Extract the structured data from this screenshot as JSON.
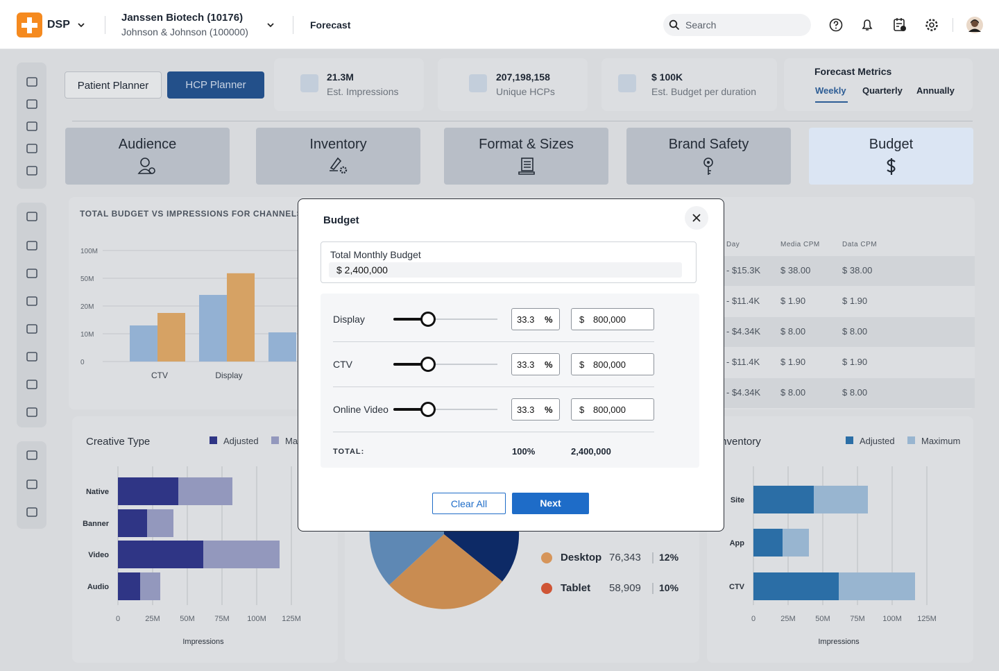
{
  "header": {
    "brand": "DSP",
    "account": "Janssen Biotech (10176)",
    "parent": "Johnson & Johnson (100000)",
    "page": "Forecast",
    "search_placeholder": "Search"
  },
  "planner_tabs": [
    "Patient Planner",
    "HCP Planner"
  ],
  "metrics": [
    {
      "value": "21.3M",
      "label": "Est. Impressions"
    },
    {
      "value": "207,198,158",
      "label": "Unique HCPs"
    },
    {
      "value": "$ 100K",
      "label": "Est. Budget per duration"
    }
  ],
  "forecast_metrics": {
    "title": "Forecast Metrics",
    "options": [
      "Weekly",
      "Quarterly",
      "Annually"
    ]
  },
  "steps": [
    "Audience",
    "Inventory",
    "Format & Sizes",
    "Brand Safety",
    "Budget"
  ],
  "budget_chart": {
    "type": "bar",
    "title": "TOTAL BUDGET VS IMPRESSIONS FOR CHANNELS",
    "categories": [
      "CTV",
      "Display",
      null
    ],
    "series": [
      {
        "color": "#93b1d3",
        "values": [
          13000000,
          32000000,
          10500000
        ]
      },
      {
        "color": "#d6a264",
        "values": [
          17500000,
          59000000,
          null
        ]
      }
    ],
    "ylim": [
      0,
      100000000
    ],
    "yticks": [
      0,
      {
        "value": 10000000,
        "label": "10M"
      },
      {
        "value": 20000000,
        "label": "20M"
      },
      {
        "value": 50000000,
        "label": "50M"
      },
      {
        "value": 100000000,
        "label": "100M"
      }
    ],
    "grid": true
  },
  "cost_table": {
    "headers": [
      "Day",
      "Media CPM",
      "Data CPM"
    ],
    "rows": [
      [
        "- $15.3K",
        "$ 38.00",
        "$ 38.00"
      ],
      [
        "- $11.4K",
        "$ 1.90",
        "$ 1.90"
      ],
      [
        "- $4.34K",
        "$ 8.00",
        "$ 8.00"
      ],
      [
        "- $11.4K",
        "$ 1.90",
        "$ 1.90"
      ],
      [
        "- $4.34K",
        "$ 8.00",
        "$ 8.00"
      ]
    ]
  },
  "creative_chart": {
    "type": "bar",
    "title": "Creative Type",
    "categories": [
      "Native",
      "Banner",
      "Video",
      "Audio"
    ],
    "series": [
      {
        "name": "Adjusted",
        "color": "#2f3585",
        "values": [
          43500000,
          21000000,
          61500000,
          16000000
        ]
      },
      {
        "name": "Maximum",
        "color": "#9398bd",
        "values": [
          82500000,
          40000000,
          116500000,
          30500000
        ]
      }
    ],
    "xlim": [
      0,
      125000000
    ],
    "xticks": [
      0,
      {
        "value": 25000000,
        "label": "25M"
      },
      {
        "value": 50000000,
        "label": "50M"
      },
      {
        "value": 75000000,
        "label": "75M"
      },
      {
        "value": 100000000,
        "label": "100M"
      },
      {
        "value": 125000000,
        "label": "125M"
      }
    ],
    "xlabel": "Impressions",
    "grid": true
  },
  "inventory_chart": {
    "type": "bar",
    "title": "Inventory",
    "categories": [
      "Site",
      "App",
      "CTV"
    ],
    "series": [
      {
        "name": "Adjusted",
        "color": "#2b6ea6",
        "values": [
          43500000,
          21000000,
          61500000
        ]
      },
      {
        "name": "Maximum",
        "color": "#98b5d0",
        "values": [
          82500000,
          40000000,
          116500000
        ]
      }
    ],
    "xlim": [
      0,
      125000000
    ],
    "xticks": [
      0,
      {
        "value": 25000000,
        "label": "25M"
      },
      {
        "value": 50000000,
        "label": "50M"
      },
      {
        "value": 75000000,
        "label": "75M"
      },
      {
        "value": 100000000,
        "label": "100M"
      },
      {
        "value": 125000000,
        "label": "125M"
      }
    ],
    "xlabel": "Impressions",
    "grid": true
  },
  "device_legend": [
    {
      "name": "Desktop",
      "count": "76,343",
      "share": "12%",
      "color": "#d6955a"
    },
    {
      "name": "Tablet",
      "count": "58,909",
      "share": "10%",
      "color": "#cf5536"
    }
  ],
  "modal": {
    "title": "Budget",
    "total_label": "Total Monthly Budget",
    "total_value": "$ 2,400,000",
    "percent_unit": "%",
    "currency": "$",
    "channels": [
      {
        "name": "Display",
        "percent": 33.3,
        "amount": "800,000"
      },
      {
        "name": "CTV",
        "percent": 33.3,
        "amount": "800,000"
      },
      {
        "name": "Online Video",
        "percent": 33.3,
        "amount": "800,000"
      }
    ],
    "total_row": {
      "label": "TOTAL:",
      "percent": "100%",
      "amount": "2,400,000"
    },
    "buttons": [
      "Clear All",
      "Next"
    ]
  }
}
